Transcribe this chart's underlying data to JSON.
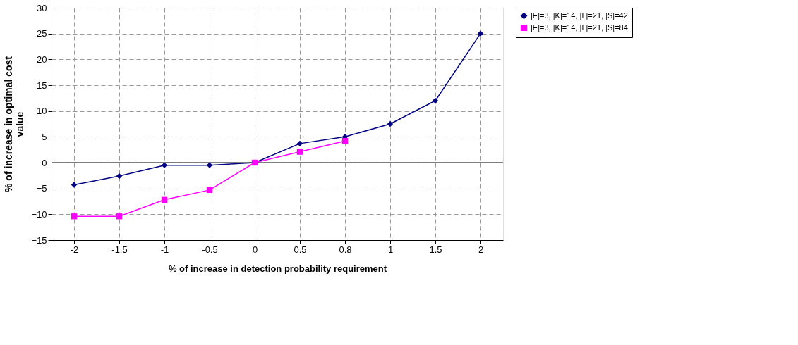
{
  "chart_data": {
    "type": "line",
    "xlabel": "% of increase in detection probability requirement",
    "ylabel": "% of increase in optimal cost value",
    "categories": [
      "-2",
      "-1.5",
      "-1",
      "-0.5",
      "0",
      "0.5",
      "0.8",
      "1",
      "1.5",
      "2"
    ],
    "series": [
      {
        "name": "|E|=3, |K|=14, |L|=21, |S|=42",
        "color": "#000080",
        "marker": "diamond",
        "values": [
          -4.3,
          -2.6,
          -0.5,
          -0.5,
          0,
          3.7,
          5,
          7.5,
          12,
          25
        ]
      },
      {
        "name": "|E|=3, |K|=14, |L|=21, |S|=84",
        "color": "#ff00ff",
        "marker": "square",
        "values": [
          -10.4,
          -10.4,
          -7.2,
          -5.3,
          0,
          2.1,
          4.2,
          null,
          null,
          null
        ]
      }
    ],
    "ylim": [
      -15,
      30
    ],
    "yticks": [
      -15,
      -10,
      -5,
      0,
      5,
      10,
      15,
      20,
      25,
      30
    ],
    "ref_lines": [
      {
        "axis": "y",
        "value": 0,
        "color": "#000000"
      }
    ],
    "grid": true,
    "legend": "right",
    "line_style": "solid"
  }
}
